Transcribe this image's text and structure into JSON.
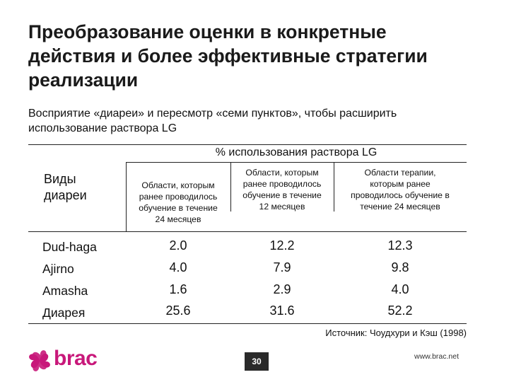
{
  "slide": {
    "title_lines": [
      "Преобразование оценки в конкретные",
      "действия и более эффективные стратегии",
      "реализации"
    ],
    "subtitle_lines": [
      "Восприятие «диареи» и пересмотр «семи пунктов», чтобы расширить",
      "использование раствора LG"
    ]
  },
  "table": {
    "group_header": "% использования раствора LG",
    "row_header_lines": [
      "Виды",
      "диареи"
    ],
    "columns": [
      {
        "lines": [
          "Области, которым",
          "ранее проводилось",
          "обучение в течение",
          "24 месяцев"
        ]
      },
      {
        "lines": [
          "Области, которым",
          "ранее проводилось",
          "обучение в течение",
          "12 месяцев"
        ]
      },
      {
        "lines": [
          "Области терапии,",
          "которым ранее",
          "проводилось обучение в",
          "течение 24 месяцев"
        ]
      }
    ],
    "rows": [
      {
        "label": "Dud-haga",
        "values": [
          "2.0",
          "12.2",
          "12.3"
        ]
      },
      {
        "label": "Ajirno",
        "values": [
          "4.0",
          "7.9",
          "9.8"
        ]
      },
      {
        "label": "Amasha",
        "values": [
          "1.6",
          "2.9",
          "4.0"
        ]
      },
      {
        "label": "Диарея",
        "values": [
          "25.6",
          "31.6",
          "52.2"
        ]
      }
    ]
  },
  "source": "Источник: Чоудхури и Кэш (1998)",
  "footer": {
    "brand": "brac",
    "page_number": "30",
    "website": "www.brac.net"
  },
  "colors": {
    "brand": "#c8187a",
    "rule": "#222222",
    "page_badge": "#2a2a2a"
  },
  "icons": [
    "brac-logo-icon"
  ]
}
